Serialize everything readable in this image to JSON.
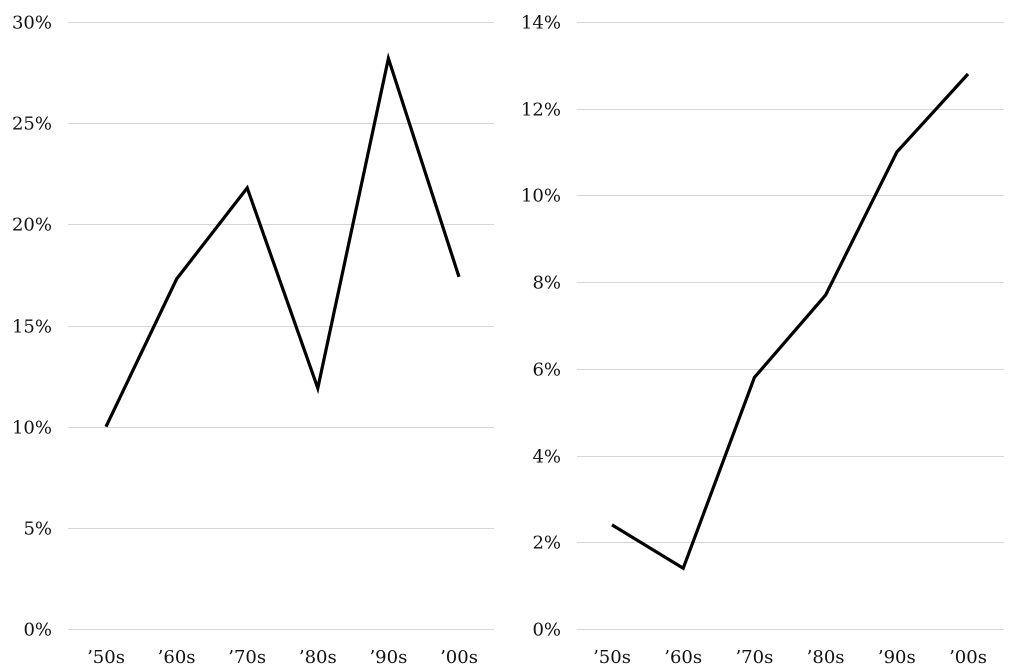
{
  "chart_data": [
    {
      "type": "line",
      "categories": [
        "’50s",
        "’60s",
        "’70s",
        "’80s",
        "’90s",
        "’00s"
      ],
      "values": [
        10,
        17.3,
        21.8,
        11.9,
        28.2,
        17.4
      ],
      "y_tick_labels": [
        "0%",
        "5%",
        "10%",
        "15%",
        "20%",
        "25%",
        "30%"
      ],
      "ylim": [
        0,
        30
      ],
      "y_unit": "%",
      "grid": true,
      "title": "",
      "xlabel": "",
      "ylabel": "",
      "line_color": "#000000"
    },
    {
      "type": "line",
      "categories": [
        "’50s",
        "’60s",
        "’70s",
        "’80s",
        "’90s",
        "’00s"
      ],
      "values": [
        2.4,
        1.4,
        5.8,
        7.7,
        11.0,
        12.8
      ],
      "y_tick_labels": [
        "0%",
        "2%",
        "4%",
        "6%",
        "8%",
        "10%",
        "12%",
        "14%"
      ],
      "ylim": [
        0,
        14
      ],
      "y_unit": "%",
      "grid": true,
      "title": "",
      "xlabel": "",
      "ylabel": "",
      "line_color": "#000000"
    }
  ]
}
